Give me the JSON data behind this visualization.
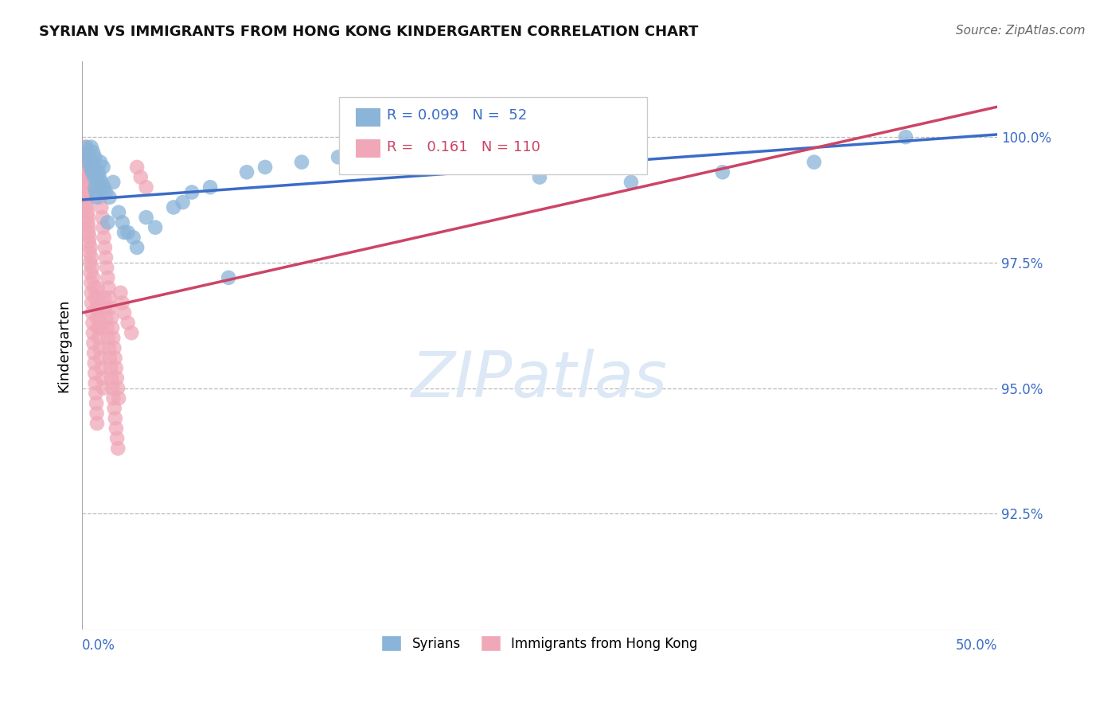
{
  "title": "SYRIAN VS IMMIGRANTS FROM HONG KONG KINDERGARTEN CORRELATION CHART",
  "source_text": "Source: ZipAtlas.com",
  "ylabel": "Kindergarten",
  "xlim": [
    0.0,
    50.0
  ],
  "ylim": [
    90.2,
    101.5
  ],
  "ytick_values": [
    92.5,
    95.0,
    97.5,
    100.0
  ],
  "blue_color": "#8ab4d8",
  "pink_color": "#f0a8b8",
  "blue_line_color": "#3b6cc7",
  "pink_line_color": "#cc4466",
  "watermark_color": "#dce8f5",
  "background_color": "#ffffff",
  "syrians_x": [
    0.25,
    0.3,
    0.35,
    0.4,
    0.45,
    0.5,
    0.55,
    0.6,
    0.65,
    0.7,
    0.75,
    0.8,
    0.85,
    0.9,
    0.95,
    1.0,
    1.05,
    1.1,
    1.15,
    1.2,
    1.3,
    1.5,
    1.7,
    2.0,
    2.2,
    2.5,
    2.8,
    3.0,
    3.5,
    4.0,
    5.0,
    5.5,
    6.0,
    7.0,
    8.0,
    9.0,
    10.0,
    12.0,
    14.0,
    17.0,
    20.0,
    22.0,
    25.0,
    27.0,
    30.0,
    35.0,
    40.0,
    45.0,
    1.4,
    2.3,
    0.6,
    0.7
  ],
  "syrians_y": [
    99.8,
    99.7,
    99.5,
    99.6,
    99.4,
    99.8,
    99.3,
    99.5,
    99.2,
    99.0,
    98.9,
    98.8,
    99.1,
    99.3,
    99.2,
    99.5,
    99.1,
    99.0,
    99.4,
    99.0,
    98.9,
    98.8,
    99.1,
    98.5,
    98.3,
    98.1,
    98.0,
    97.8,
    98.4,
    98.2,
    98.6,
    98.7,
    98.9,
    99.0,
    97.2,
    99.3,
    99.4,
    99.5,
    99.6,
    99.8,
    99.7,
    99.5,
    99.2,
    99.4,
    99.1,
    99.3,
    99.5,
    100.0,
    98.3,
    98.1,
    99.7,
    99.6
  ],
  "hk_x": [
    0.05,
    0.08,
    0.1,
    0.12,
    0.15,
    0.18,
    0.2,
    0.22,
    0.25,
    0.28,
    0.3,
    0.32,
    0.35,
    0.38,
    0.4,
    0.42,
    0.45,
    0.48,
    0.5,
    0.52,
    0.55,
    0.58,
    0.6,
    0.62,
    0.65,
    0.68,
    0.7,
    0.72,
    0.75,
    0.78,
    0.8,
    0.82,
    0.85,
    0.88,
    0.9,
    0.92,
    0.95,
    0.98,
    1.0,
    1.05,
    1.1,
    1.15,
    1.2,
    1.25,
    1.3,
    1.35,
    1.4,
    1.45,
    1.5,
    1.55,
    1.6,
    1.65,
    1.7,
    1.75,
    1.8,
    1.85,
    1.9,
    1.95,
    2.0,
    2.1,
    2.2,
    2.3,
    2.5,
    2.7,
    3.0,
    3.2,
    3.5,
    0.06,
    0.11,
    0.16,
    0.21,
    0.26,
    0.31,
    0.36,
    0.41,
    0.46,
    0.51,
    0.56,
    0.61,
    0.66,
    0.71,
    0.76,
    0.81,
    0.86,
    0.91,
    0.96,
    1.01,
    1.06,
    1.11,
    1.16,
    1.21,
    1.26,
    1.31,
    1.36,
    1.41,
    1.46,
    1.51,
    1.56,
    1.61,
    1.66,
    1.71,
    1.76,
    1.81,
    1.86,
    1.91,
    1.96
  ],
  "hk_y": [
    99.5,
    99.3,
    99.7,
    99.2,
    99.8,
    99.6,
    99.4,
    99.1,
    98.9,
    98.7,
    98.5,
    98.3,
    98.1,
    97.9,
    97.7,
    97.5,
    97.3,
    97.1,
    96.9,
    96.7,
    96.5,
    96.3,
    96.1,
    95.9,
    95.7,
    95.5,
    95.3,
    95.1,
    94.9,
    94.7,
    94.5,
    94.3,
    97.0,
    96.8,
    96.6,
    96.4,
    96.2,
    99.0,
    98.8,
    98.6,
    98.4,
    98.2,
    98.0,
    97.8,
    97.6,
    97.4,
    97.2,
    97.0,
    96.8,
    96.6,
    96.4,
    96.2,
    96.0,
    95.8,
    95.6,
    95.4,
    95.2,
    95.0,
    94.8,
    96.9,
    96.7,
    96.5,
    96.3,
    96.1,
    99.4,
    99.2,
    99.0,
    99.4,
    99.2,
    99.0,
    98.8,
    98.6,
    98.4,
    98.2,
    98.0,
    97.8,
    97.6,
    97.4,
    97.2,
    97.0,
    96.8,
    96.6,
    96.4,
    96.2,
    96.0,
    95.8,
    95.6,
    95.4,
    95.2,
    95.0,
    96.8,
    96.6,
    96.4,
    96.2,
    96.0,
    95.8,
    95.6,
    95.4,
    95.2,
    95.0,
    94.8,
    94.6,
    94.4,
    94.2,
    94.0,
    93.8
  ],
  "blue_trendline_x": [
    0.0,
    50.0
  ],
  "blue_trendline_y": [
    98.75,
    100.05
  ],
  "pink_trendline_x": [
    0.0,
    50.0
  ],
  "pink_trendline_y": [
    96.5,
    100.6
  ]
}
